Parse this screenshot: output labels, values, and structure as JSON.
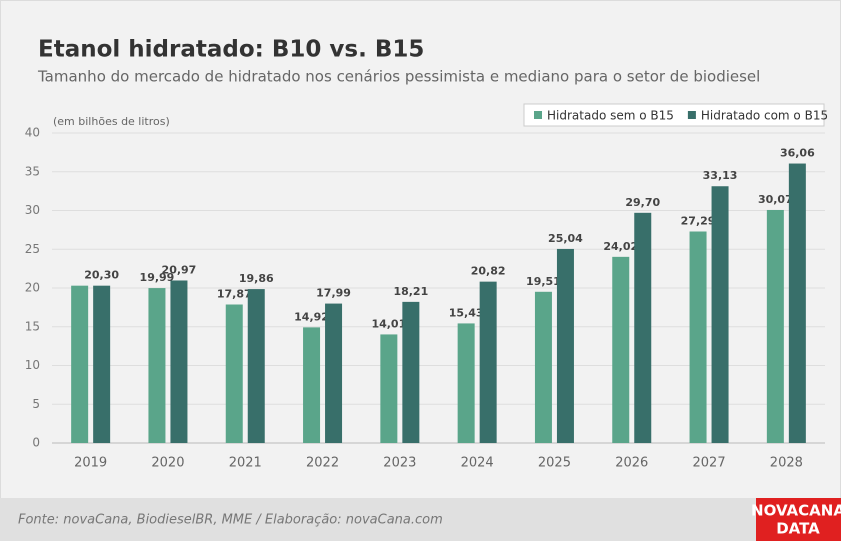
{
  "chart_data": {
    "type": "bar",
    "title": "Etanol hidratado: B10 vs. B15",
    "subtitle": "Tamanho do mercado de hidratado nos cenários pessimista e mediano para o setor de biodiesel",
    "y_axis_label": "(em bilhões de litros)",
    "categories": [
      "2019",
      "2020",
      "2021",
      "2022",
      "2023",
      "2024",
      "2025",
      "2026",
      "2027",
      "2028"
    ],
    "series": [
      {
        "name": "Hidratado sem o B15",
        "color": "#5aa58a",
        "values": [
          20.3,
          19.99,
          17.87,
          14.92,
          14.01,
          15.43,
          19.51,
          24.02,
          27.29,
          30.07
        ],
        "value_labels": [
          null,
          "19,99",
          "17,87",
          "14,92",
          "14,01",
          "15,43",
          "19,51",
          "24,02",
          "27,29",
          "30,07"
        ]
      },
      {
        "name": "Hidratado com o B15",
        "color": "#386f6a",
        "values": [
          20.3,
          20.97,
          19.86,
          17.99,
          18.21,
          20.82,
          25.04,
          29.7,
          33.13,
          36.06
        ],
        "value_labels": [
          "20,30",
          "20,97",
          "19,86",
          "17,99",
          "18,21",
          "20,82",
          "25,04",
          "29,70",
          "33,13",
          "36,06"
        ]
      }
    ],
    "ylim": [
      0,
      40
    ],
    "yticks": [
      0,
      5,
      10,
      15,
      20,
      25,
      30,
      35,
      40
    ],
    "grid": true,
    "legend": "top-right",
    "source": "Fonte: novaCana, BiodieselBR, MME / Elaboração: novaCana.com",
    "logo": [
      "NOVACANA",
      "DATA"
    ]
  }
}
